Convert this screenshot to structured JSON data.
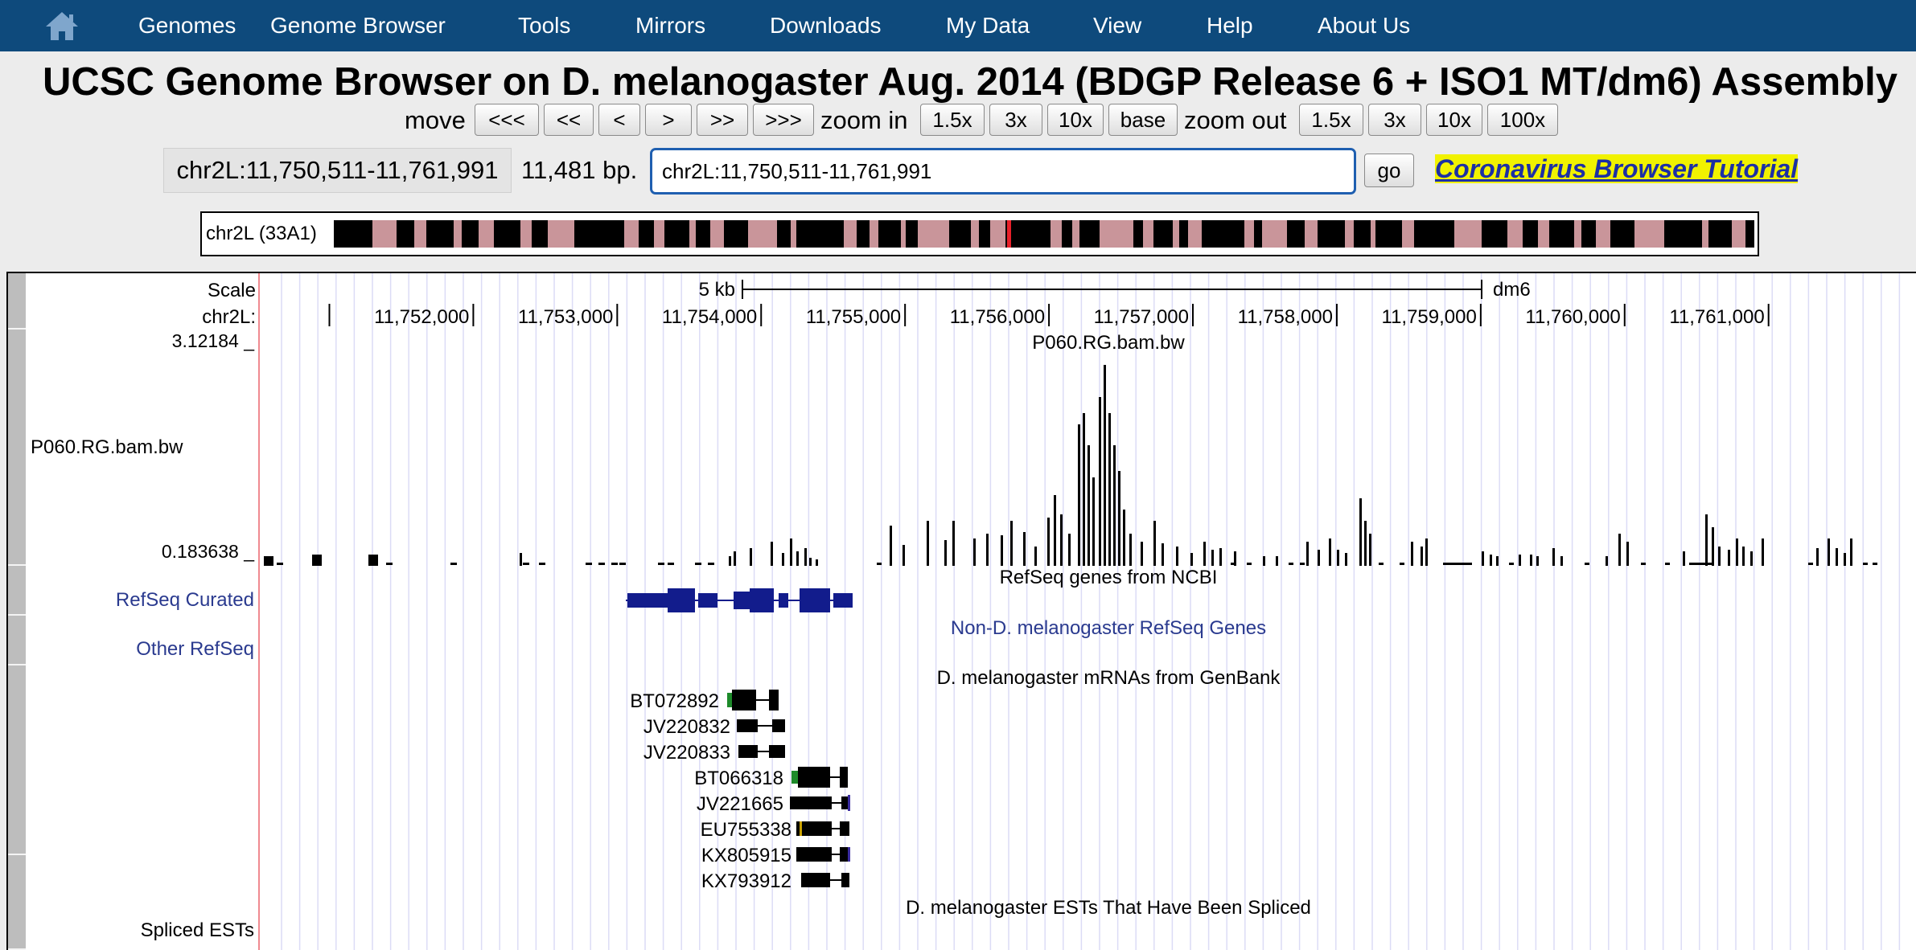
{
  "nav": {
    "items": [
      "Genomes",
      "Genome Browser",
      "Tools",
      "Mirrors",
      "Downloads",
      "My Data",
      "View",
      "Help",
      "About Us"
    ]
  },
  "title": "UCSC Genome Browser on D. melanogaster Aug. 2014 (BDGP Release 6 + ISO1 MT/dm6) Assembly",
  "controls": {
    "move_label": "move",
    "move_buttons": [
      "<<<",
      "<<",
      "<",
      ">",
      ">>",
      ">>>"
    ],
    "zoom_in_label": "zoom in",
    "zoom_in_buttons": [
      "1.5x",
      "3x",
      "10x",
      "base"
    ],
    "zoom_out_label": "zoom out",
    "zoom_out_buttons": [
      "1.5x",
      "3x",
      "10x",
      "100x"
    ]
  },
  "position": {
    "current": "chr2L:11,750,511-11,761,991",
    "size": "11,481 bp.",
    "search_value": "chr2L:11,750,511-11,761,991",
    "go_label": "go"
  },
  "tutorial_link": "Coronavirus Browser Tutorial",
  "ideogram": {
    "label": "chr2L (33A1)",
    "highlight_fraction": 0.475
  },
  "ruler": {
    "scale_label": "Scale",
    "chrom_label": "chr2L:",
    "scale_bar_text": "5 kb",
    "assembly": "dm6",
    "ticks": [
      "11,752,000",
      "11,753,000",
      "11,754,000",
      "11,755,000",
      "11,756,000",
      "11,757,000",
      "11,758,000",
      "11,759,000",
      "11,760,000",
      "11,761,000"
    ],
    "start": 11750511,
    "end": 11761991
  },
  "colors": {
    "nav_bg": "#0e4a7c",
    "track_label_blue": "#2a3a8f",
    "gene_navy": "#121c8c",
    "ideogram_pink": "#c9959a",
    "cursor_red": "#e8202a",
    "tutorial_bg": "#f1f200",
    "guide_line": "#dcdcf6"
  },
  "signal_track": {
    "name": "P060.RG.bam.bw",
    "center_label": "P060.RG.bam.bw",
    "max_label": "3.12184 _",
    "min_label": "0.183638 _"
  },
  "refseq": {
    "center_label": "RefSeq genes from NCBI",
    "curated_label": "RefSeq Curated",
    "other_label": "Other RefSeq",
    "other_center_label": "Non-D. melanogaster RefSeq Genes"
  },
  "mrna_track": {
    "center_label": "D. melanogaster mRNAs from GenBank",
    "items": [
      "BT072892",
      "JV220832",
      "JV220833",
      "BT066318",
      "JV221665",
      "EU755338",
      "KX805915",
      "KX793912"
    ]
  },
  "est_track": {
    "center_label": "D. melanogaster ESTs That Have Been Spliced",
    "label": "Spliced ESTs"
  }
}
